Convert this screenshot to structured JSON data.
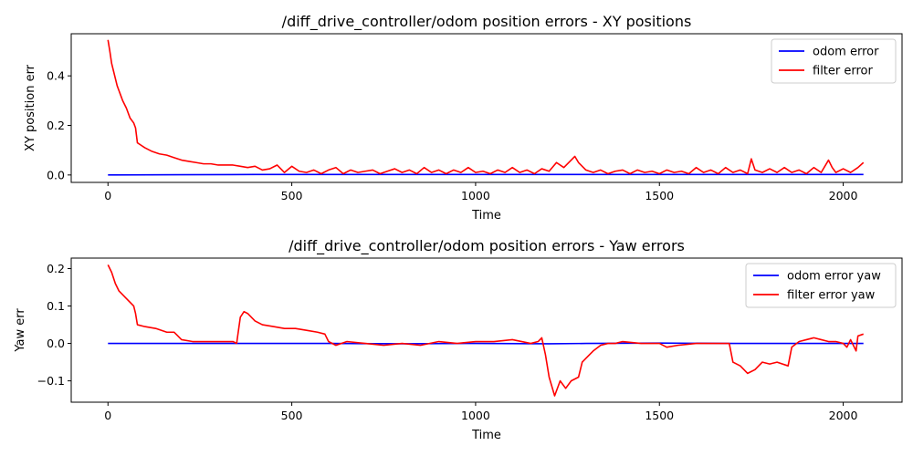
{
  "chart_data": [
    {
      "type": "line",
      "title": "/diff_drive_controller/odom position errors - XY positions",
      "xlabel": "Time",
      "ylabel": "XY position err",
      "xlim": [
        -100,
        2160
      ],
      "ylim": [
        -0.03,
        0.57
      ],
      "x_ticks": [
        0,
        500,
        1000,
        1500,
        2000
      ],
      "y_ticks": [
        0.0,
        0.2,
        0.4
      ],
      "grid": false,
      "legend_position": "top-right",
      "series": [
        {
          "name": "odom error",
          "color": "#0000ff",
          "points": [
            [
              0,
              0.0
            ],
            [
              200,
              0.001
            ],
            [
              400,
              0.002
            ],
            [
              600,
              0.002
            ],
            [
              800,
              0.002
            ],
            [
              1000,
              0.002
            ],
            [
              1200,
              0.002
            ],
            [
              1400,
              0.002
            ],
            [
              1600,
              0.002
            ],
            [
              1800,
              0.002
            ],
            [
              2000,
              0.002
            ],
            [
              2055,
              0.002
            ]
          ]
        },
        {
          "name": "filter error",
          "color": "#ff0000",
          "points": [
            [
              0,
              0.545
            ],
            [
              5,
              0.5
            ],
            [
              10,
              0.45
            ],
            [
              15,
              0.42
            ],
            [
              20,
              0.39
            ],
            [
              25,
              0.36
            ],
            [
              30,
              0.34
            ],
            [
              35,
              0.32
            ],
            [
              40,
              0.3
            ],
            [
              50,
              0.27
            ],
            [
              60,
              0.23
            ],
            [
              70,
              0.21
            ],
            [
              75,
              0.19
            ],
            [
              80,
              0.13
            ],
            [
              90,
              0.12
            ],
            [
              100,
              0.11
            ],
            [
              120,
              0.095
            ],
            [
              140,
              0.085
            ],
            [
              160,
              0.08
            ],
            [
              180,
              0.07
            ],
            [
              200,
              0.06
            ],
            [
              220,
              0.055
            ],
            [
              240,
              0.05
            ],
            [
              260,
              0.045
            ],
            [
              280,
              0.045
            ],
            [
              300,
              0.04
            ],
            [
              320,
              0.04
            ],
            [
              340,
              0.04
            ],
            [
              360,
              0.035
            ],
            [
              380,
              0.03
            ],
            [
              400,
              0.035
            ],
            [
              420,
              0.02
            ],
            [
              440,
              0.025
            ],
            [
              460,
              0.04
            ],
            [
              480,
              0.01
            ],
            [
              500,
              0.035
            ],
            [
              520,
              0.015
            ],
            [
              540,
              0.01
            ],
            [
              560,
              0.02
            ],
            [
              580,
              0.005
            ],
            [
              600,
              0.02
            ],
            [
              620,
              0.03
            ],
            [
              640,
              0.005
            ],
            [
              660,
              0.02
            ],
            [
              680,
              0.01
            ],
            [
              700,
              0.015
            ],
            [
              720,
              0.02
            ],
            [
              740,
              0.005
            ],
            [
              760,
              0.015
            ],
            [
              780,
              0.025
            ],
            [
              800,
              0.01
            ],
            [
              820,
              0.02
            ],
            [
              840,
              0.005
            ],
            [
              860,
              0.03
            ],
            [
              880,
              0.01
            ],
            [
              900,
              0.02
            ],
            [
              920,
              0.005
            ],
            [
              940,
              0.02
            ],
            [
              960,
              0.01
            ],
            [
              980,
              0.03
            ],
            [
              1000,
              0.01
            ],
            [
              1020,
              0.015
            ],
            [
              1040,
              0.005
            ],
            [
              1060,
              0.02
            ],
            [
              1080,
              0.01
            ],
            [
              1100,
              0.03
            ],
            [
              1120,
              0.01
            ],
            [
              1140,
              0.02
            ],
            [
              1160,
              0.005
            ],
            [
              1180,
              0.025
            ],
            [
              1200,
              0.015
            ],
            [
              1220,
              0.05
            ],
            [
              1240,
              0.03
            ],
            [
              1260,
              0.06
            ],
            [
              1270,
              0.075
            ],
            [
              1280,
              0.05
            ],
            [
              1300,
              0.02
            ],
            [
              1320,
              0.01
            ],
            [
              1340,
              0.02
            ],
            [
              1360,
              0.005
            ],
            [
              1380,
              0.015
            ],
            [
              1400,
              0.02
            ],
            [
              1420,
              0.005
            ],
            [
              1440,
              0.02
            ],
            [
              1460,
              0.01
            ],
            [
              1480,
              0.015
            ],
            [
              1500,
              0.005
            ],
            [
              1520,
              0.02
            ],
            [
              1540,
              0.01
            ],
            [
              1560,
              0.015
            ],
            [
              1580,
              0.005
            ],
            [
              1600,
              0.03
            ],
            [
              1620,
              0.01
            ],
            [
              1640,
              0.02
            ],
            [
              1660,
              0.005
            ],
            [
              1680,
              0.03
            ],
            [
              1700,
              0.01
            ],
            [
              1720,
              0.02
            ],
            [
              1740,
              0.005
            ],
            [
              1750,
              0.065
            ],
            [
              1760,
              0.02
            ],
            [
              1780,
              0.01
            ],
            [
              1800,
              0.025
            ],
            [
              1820,
              0.01
            ],
            [
              1840,
              0.03
            ],
            [
              1860,
              0.01
            ],
            [
              1880,
              0.02
            ],
            [
              1900,
              0.005
            ],
            [
              1920,
              0.03
            ],
            [
              1940,
              0.01
            ],
            [
              1960,
              0.06
            ],
            [
              1970,
              0.03
            ],
            [
              1980,
              0.01
            ],
            [
              2000,
              0.025
            ],
            [
              2020,
              0.01
            ],
            [
              2040,
              0.03
            ],
            [
              2055,
              0.05
            ]
          ]
        }
      ]
    },
    {
      "type": "line",
      "title": "/diff_drive_controller/odom position errors - Yaw errors",
      "xlabel": "Time",
      "ylabel": "Yaw err",
      "xlim": [
        -100,
        2160
      ],
      "ylim": [
        -0.157,
        0.228
      ],
      "x_ticks": [
        0,
        500,
        1000,
        1500,
        2000
      ],
      "y_ticks": [
        -0.1,
        0.0,
        0.1,
        0.2
      ],
      "grid": false,
      "legend_position": "top-right",
      "series": [
        {
          "name": "odom error yaw",
          "color": "#0000ff",
          "points": [
            [
              0,
              0.0
            ],
            [
              300,
              0.0
            ],
            [
              600,
              0.0
            ],
            [
              800,
              -0.001
            ],
            [
              1000,
              0.0
            ],
            [
              1200,
              -0.001
            ],
            [
              1300,
              0.0
            ],
            [
              1500,
              0.001
            ],
            [
              1700,
              0.0
            ],
            [
              1900,
              0.0
            ],
            [
              2055,
              0.0
            ]
          ]
        },
        {
          "name": "filter error yaw",
          "color": "#ff0000",
          "points": [
            [
              0,
              0.21
            ],
            [
              10,
              0.19
            ],
            [
              20,
              0.16
            ],
            [
              30,
              0.14
            ],
            [
              50,
              0.12
            ],
            [
              70,
              0.1
            ],
            [
              75,
              0.08
            ],
            [
              80,
              0.05
            ],
            [
              100,
              0.045
            ],
            [
              130,
              0.04
            ],
            [
              160,
              0.03
            ],
            [
              180,
              0.03
            ],
            [
              190,
              0.02
            ],
            [
              200,
              0.01
            ],
            [
              230,
              0.005
            ],
            [
              260,
              0.005
            ],
            [
              300,
              0.005
            ],
            [
              340,
              0.005
            ],
            [
              350,
              0.0
            ],
            [
              360,
              0.07
            ],
            [
              370,
              0.085
            ],
            [
              380,
              0.08
            ],
            [
              400,
              0.06
            ],
            [
              420,
              0.05
            ],
            [
              450,
              0.045
            ],
            [
              480,
              0.04
            ],
            [
              510,
              0.04
            ],
            [
              540,
              0.035
            ],
            [
              570,
              0.03
            ],
            [
              590,
              0.025
            ],
            [
              600,
              0.005
            ],
            [
              620,
              -0.005
            ],
            [
              650,
              0.005
            ],
            [
              700,
              0.0
            ],
            [
              750,
              -0.005
            ],
            [
              800,
              0.0
            ],
            [
              850,
              -0.005
            ],
            [
              900,
              0.005
            ],
            [
              950,
              0.0
            ],
            [
              1000,
              0.005
            ],
            [
              1050,
              0.005
            ],
            [
              1100,
              0.01
            ],
            [
              1150,
              0.0
            ],
            [
              1170,
              0.005
            ],
            [
              1180,
              0.015
            ],
            [
              1190,
              -0.03
            ],
            [
              1200,
              -0.09
            ],
            [
              1215,
              -0.14
            ],
            [
              1230,
              -0.1
            ],
            [
              1245,
              -0.12
            ],
            [
              1260,
              -0.1
            ],
            [
              1280,
              -0.09
            ],
            [
              1290,
              -0.05
            ],
            [
              1300,
              -0.04
            ],
            [
              1320,
              -0.02
            ],
            [
              1340,
              -0.005
            ],
            [
              1360,
              0.0
            ],
            [
              1380,
              0.0
            ],
            [
              1400,
              0.005
            ],
            [
              1450,
              0.0
            ],
            [
              1500,
              0.0
            ],
            [
              1520,
              -0.01
            ],
            [
              1550,
              -0.005
            ],
            [
              1600,
              0.0
            ],
            [
              1650,
              0.0
            ],
            [
              1690,
              0.0
            ],
            [
              1700,
              -0.05
            ],
            [
              1720,
              -0.06
            ],
            [
              1740,
              -0.08
            ],
            [
              1760,
              -0.07
            ],
            [
              1780,
              -0.05
            ],
            [
              1800,
              -0.055
            ],
            [
              1820,
              -0.05
            ],
            [
              1850,
              -0.06
            ],
            [
              1860,
              -0.01
            ],
            [
              1880,
              0.005
            ],
            [
              1900,
              0.01
            ],
            [
              1920,
              0.015
            ],
            [
              1940,
              0.01
            ],
            [
              1960,
              0.005
            ],
            [
              1980,
              0.005
            ],
            [
              2000,
              0.0
            ],
            [
              2010,
              -0.01
            ],
            [
              2020,
              0.01
            ],
            [
              2035,
              -0.02
            ],
            [
              2040,
              0.02
            ],
            [
              2055,
              0.025
            ]
          ]
        }
      ]
    }
  ]
}
